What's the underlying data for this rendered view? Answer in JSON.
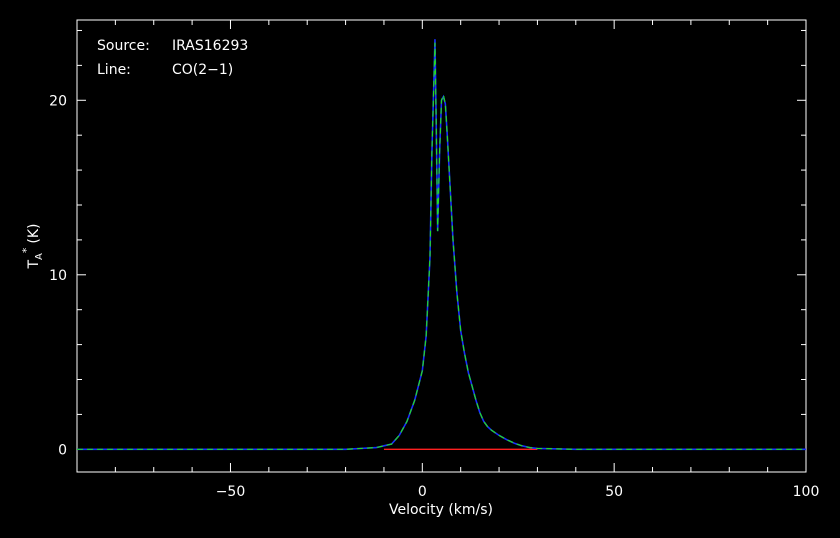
{
  "chart_data": {
    "type": "line",
    "xlabel": "Velocity (km/s)",
    "ylabel_main": "T",
    "ylabel_sub": "A",
    "ylabel_sup": "*",
    "ylabel_unit": "(K)",
    "xlim": [
      -90,
      100
    ],
    "ylim": [
      -1.3,
      24.6
    ],
    "x_ticks": [
      -50,
      0,
      50,
      100
    ],
    "x_tick_labels": [
      "−50",
      "0",
      "50",
      "100"
    ],
    "y_ticks": [
      0,
      10,
      20
    ],
    "y_tick_labels": [
      "0",
      "10",
      "20"
    ],
    "info": {
      "source_label": "Source:",
      "source_value": "IRAS16293",
      "line_label": "Line:",
      "line_value": "CO(2−1)"
    },
    "colors": {
      "observed": "#1a2fff",
      "fit": "#22dd22",
      "baseline": "#ff2020",
      "axes": "#ffffff",
      "background": "#000000"
    },
    "baseline": {
      "x": [
        -10,
        30
      ],
      "y": 0
    },
    "series": [
      {
        "style": "observed",
        "x": [
          -90,
          -60,
          -40,
          -20,
          -12,
          -8,
          -6,
          -4,
          -2,
          0,
          1,
          2,
          2.5,
          3,
          3.3,
          3.6,
          4,
          4.5,
          5,
          5.5,
          6,
          6.5,
          7,
          8,
          9,
          10,
          11,
          12,
          13,
          14,
          15,
          16,
          17,
          18,
          20,
          22,
          24,
          26,
          28,
          30,
          40,
          60,
          80,
          100
        ],
        "y": [
          0,
          0,
          0,
          0,
          0.1,
          0.3,
          0.8,
          1.6,
          2.8,
          4.5,
          6.5,
          11,
          17,
          21,
          23.5,
          19,
          12.5,
          17,
          20,
          20.2,
          19.8,
          18,
          16,
          12,
          9,
          6.8,
          5.5,
          4.4,
          3.6,
          2.8,
          2.1,
          1.6,
          1.3,
          1.1,
          0.8,
          0.55,
          0.35,
          0.2,
          0.1,
          0.05,
          0,
          0,
          0,
          0
        ]
      },
      {
        "style": "fit",
        "x": [
          -90,
          -20,
          -12,
          -8,
          -6,
          -4,
          -2,
          0,
          1,
          2,
          2.5,
          3,
          3.3,
          3.6,
          4,
          4.5,
          5,
          5.5,
          6,
          6.5,
          7,
          8,
          9,
          10,
          11,
          12,
          13,
          14,
          15,
          16,
          17,
          18,
          20,
          22,
          24,
          26,
          28,
          30,
          40,
          100
        ],
        "y": [
          0,
          0,
          0.1,
          0.3,
          0.8,
          1.6,
          2.8,
          4.5,
          6.5,
          11,
          17,
          21,
          23.3,
          19,
          12.5,
          17,
          20,
          20.3,
          19.8,
          18,
          16,
          12,
          9,
          6.8,
          5.5,
          4.4,
          3.6,
          2.8,
          2.1,
          1.6,
          1.3,
          1.1,
          0.8,
          0.55,
          0.35,
          0.2,
          0.1,
          0.05,
          0,
          0
        ]
      }
    ]
  }
}
